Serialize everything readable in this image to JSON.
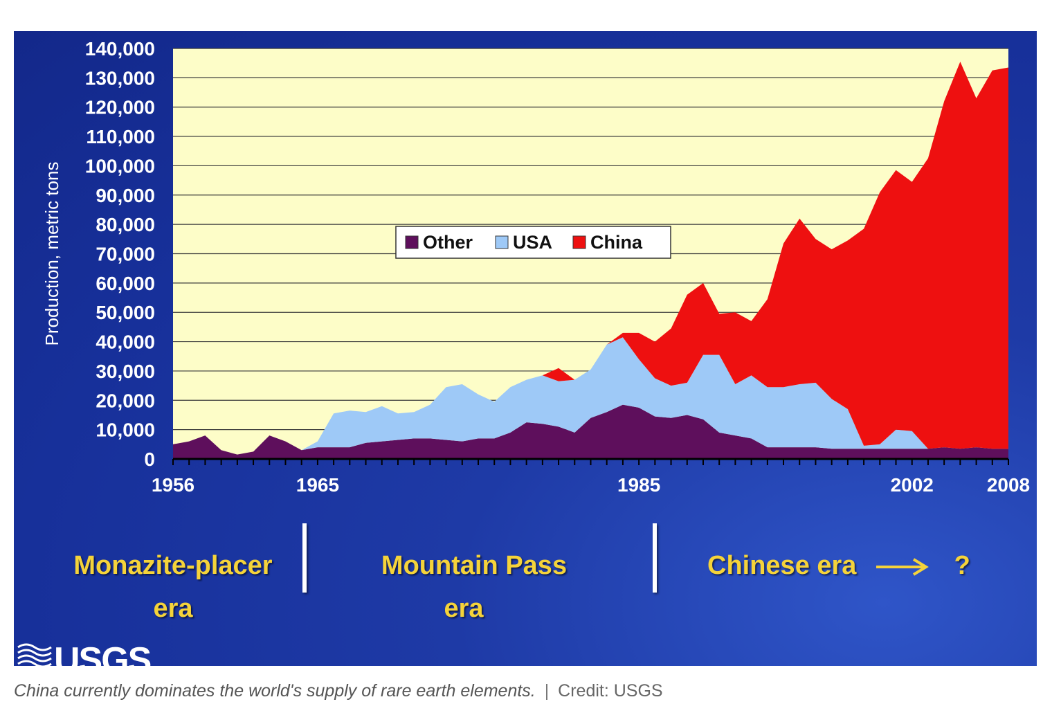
{
  "chart_data": {
    "type": "area",
    "stacked": true,
    "title": "",
    "xlabel": "",
    "ylabel": "Production, metric tons",
    "ylim": [
      0,
      140000
    ],
    "xlim": [
      1956,
      2008
    ],
    "grid": true,
    "y_ticks": [
      0,
      10000,
      20000,
      30000,
      40000,
      50000,
      60000,
      70000,
      80000,
      90000,
      100000,
      110000,
      120000,
      130000,
      140000
    ],
    "y_tick_labels": [
      "0",
      "10,000",
      "20,000",
      "30,000",
      "40,000",
      "50,000",
      "60,000",
      "70,000",
      "80,000",
      "90,000",
      "100,000",
      "110,000",
      "120,000",
      "130,000",
      "140,000"
    ],
    "x_tick_labels": [
      "1956",
      "1965",
      "1985",
      "2002",
      "2008"
    ],
    "x_tick_values": [
      1956,
      1965,
      1985,
      2002,
      2008
    ],
    "legend_position": "center",
    "x": [
      1956,
      1957,
      1958,
      1959,
      1960,
      1961,
      1962,
      1963,
      1964,
      1965,
      1966,
      1967,
      1968,
      1969,
      1970,
      1971,
      1972,
      1973,
      1974,
      1975,
      1976,
      1977,
      1978,
      1979,
      1980,
      1981,
      1982,
      1983,
      1984,
      1985,
      1986,
      1987,
      1988,
      1989,
      1990,
      1991,
      1992,
      1993,
      1994,
      1995,
      1996,
      1997,
      1998,
      1999,
      2000,
      2001,
      2002,
      2003,
      2004,
      2005,
      2006,
      2007,
      2008
    ],
    "series": [
      {
        "name": "Other",
        "color": "#5e0f5c",
        "values": [
          5000,
          6000,
          8000,
          3000,
          1500,
          2500,
          8000,
          6000,
          3000,
          4000,
          4000,
          4000,
          5500,
          6000,
          6500,
          7000,
          7000,
          6500,
          6000,
          7000,
          7000,
          9000,
          12500,
          12000,
          11000,
          9000,
          14000,
          16000,
          18500,
          17500,
          14500,
          14000,
          15000,
          13500,
          9000,
          8000,
          7000,
          4000,
          4000,
          4000,
          4000,
          3500,
          3500,
          3500,
          3500,
          3500,
          3500,
          3500,
          4000,
          3500,
          4000,
          3500,
          3500
        ]
      },
      {
        "name": "USA",
        "color": "#9ec9f7",
        "values": [
          0,
          0,
          0,
          0,
          0,
          0,
          0,
          0,
          0,
          2000,
          11500,
          12500,
          10500,
          12000,
          9000,
          9000,
          11500,
          18000,
          19500,
          15000,
          12500,
          15500,
          14500,
          16500,
          15500,
          18000,
          16500,
          23000,
          23000,
          16500,
          13000,
          11000,
          11000,
          22000,
          26500,
          17500,
          21500,
          20500,
          20500,
          21500,
          22000,
          17000,
          13500,
          1000,
          1500,
          6500,
          6000,
          0,
          0,
          0,
          0,
          0,
          0
        ]
      },
      {
        "name": "China",
        "color": "#ee1010",
        "values": [
          0,
          0,
          0,
          0,
          0,
          0,
          0,
          0,
          0,
          0,
          0,
          0,
          0,
          0,
          0,
          0,
          0,
          0,
          0,
          0,
          0,
          0,
          0,
          0,
          4500,
          0,
          0,
          0,
          1500,
          9000,
          12500,
          19500,
          30000,
          24500,
          14000,
          24500,
          18500,
          30000,
          49000,
          56500,
          49000,
          51000,
          57500,
          74000,
          86000,
          88500,
          85000,
          99000,
          118000,
          132000,
          119000,
          129000,
          130000
        ]
      }
    ]
  },
  "eras": {
    "era1": {
      "line1": "Monazite-placer",
      "line2": "era"
    },
    "era2": {
      "line1": "Mountain Pass",
      "line2": "era"
    },
    "era3": {
      "text": "Chinese era",
      "question": "?"
    }
  },
  "logo": {
    "text": "USGS"
  },
  "caption": {
    "text": "China currently dominates the world's supply of rare earth elements.",
    "separator": "|",
    "credit": "Credit: USGS"
  },
  "colors": {
    "plot_background": "#fdfdc8",
    "slide_background": "#1e3aa6",
    "era_text": "#f5d33a"
  }
}
